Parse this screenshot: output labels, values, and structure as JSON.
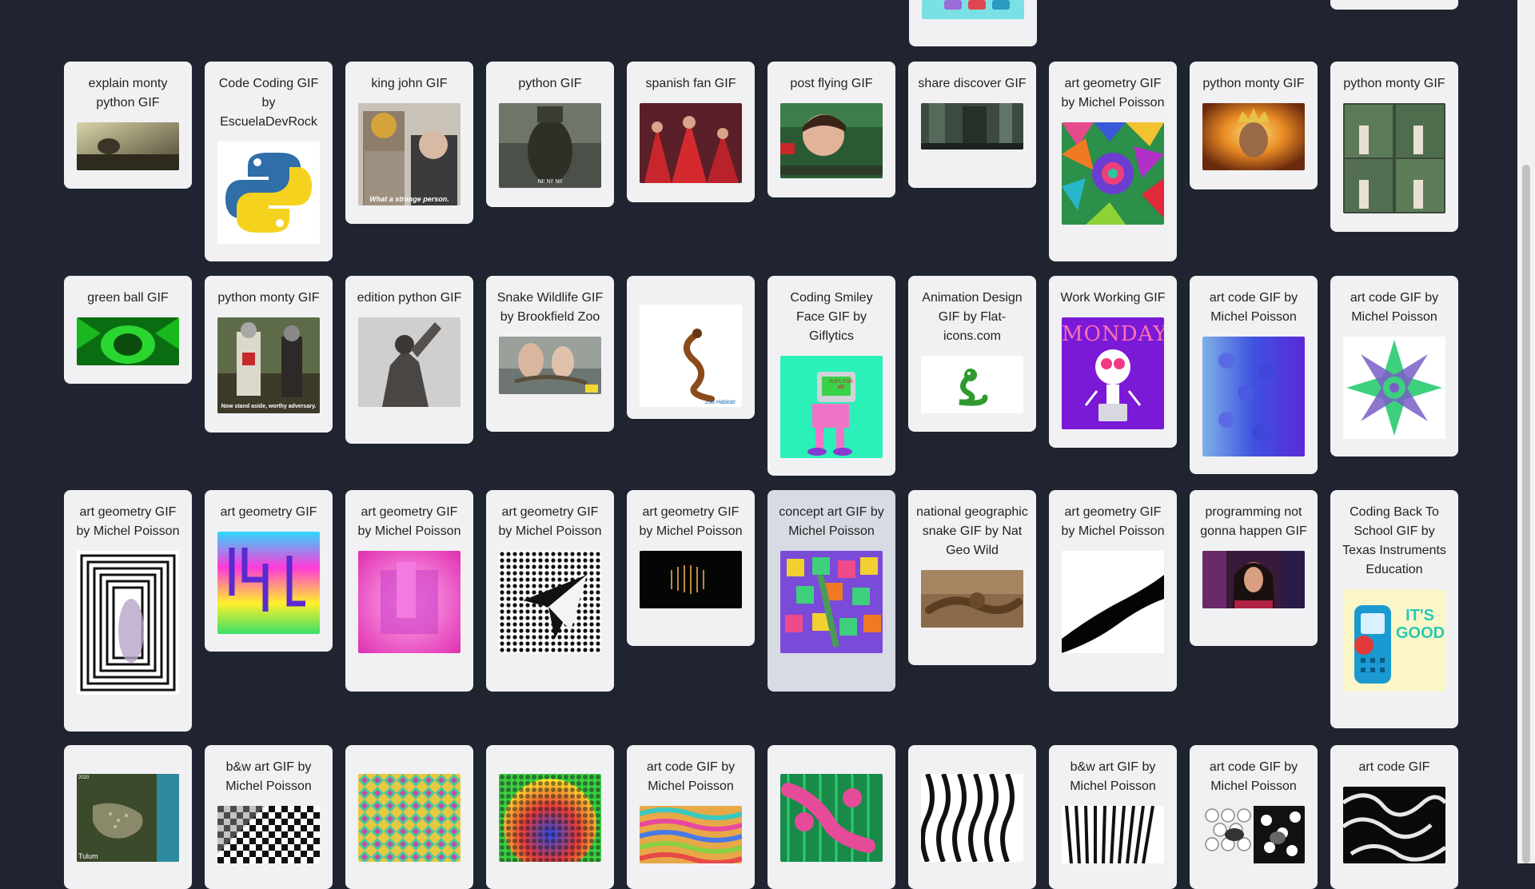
{
  "gallery": {
    "cards": [
      {
        "title": "explain monty python GIF"
      },
      {
        "title": "Code Coding GIF by EscuelaDevRock"
      },
      {
        "title": "king john GIF"
      },
      {
        "title": "python GIF"
      },
      {
        "title": "spanish fan GIF"
      },
      {
        "title": "post flying GIF"
      },
      {
        "title": "share discover GIF"
      },
      {
        "title": "art geometry GIF by Michel Poisson"
      },
      {
        "title": "python monty GIF"
      },
      {
        "title": "python monty GIF"
      },
      {
        "title": "green ball GIF"
      },
      {
        "title": "python monty GIF"
      },
      {
        "title": "edition python GIF"
      },
      {
        "title": "Snake Wildlife GIF by Brookfield Zoo"
      },
      {
        "title": ""
      },
      {
        "title": "Coding Smiley Face GIF by Giflytics"
      },
      {
        "title": "Animation Design GIF by Flat-icons.com"
      },
      {
        "title": "Work Working GIF"
      },
      {
        "title": "art code GIF by Michel Poisson"
      },
      {
        "title": "art code GIF by Michel Poisson"
      },
      {
        "title": "art geometry GIF by Michel Poisson"
      },
      {
        "title": "art geometry GIF"
      },
      {
        "title": "art geometry GIF by Michel Poisson"
      },
      {
        "title": "art geometry GIF by Michel Poisson"
      },
      {
        "title": "art geometry GIF by Michel Poisson"
      },
      {
        "title": "concept art GIF by Michel Poisson"
      },
      {
        "title": "national geographic snake GIF by Nat Geo Wild"
      },
      {
        "title": "art geometry GIF by Michel Poisson"
      },
      {
        "title": "programming not gonna happen GIF"
      },
      {
        "title": "Coding Back To School GIF by Texas Instruments Education"
      },
      {
        "title": ""
      },
      {
        "title": "b&w art GIF by Michel Poisson"
      },
      {
        "title": ""
      },
      {
        "title": ""
      },
      {
        "title": "art code GIF by Michel Poisson"
      },
      {
        "title": ""
      },
      {
        "title": ""
      },
      {
        "title": "b&w art GIF by Michel Poisson"
      },
      {
        "title": "art code GIF by Michel Poisson"
      },
      {
        "title": "art code GIF"
      }
    ],
    "thumb_captions": {
      "king_john": "What a strange person.",
      "python_gif": "NI! NI! NI!",
      "python_monty_2": "Now stand aside, worthy adversary.",
      "zoo_logo": "Zoo Habitat!",
      "monday": "MONDAY",
      "its_good": "IT'S GOOD",
      "tulum": "Tulum",
      "tulum_year": "2020",
      "smiley": "ROFL FOR ME"
    }
  }
}
